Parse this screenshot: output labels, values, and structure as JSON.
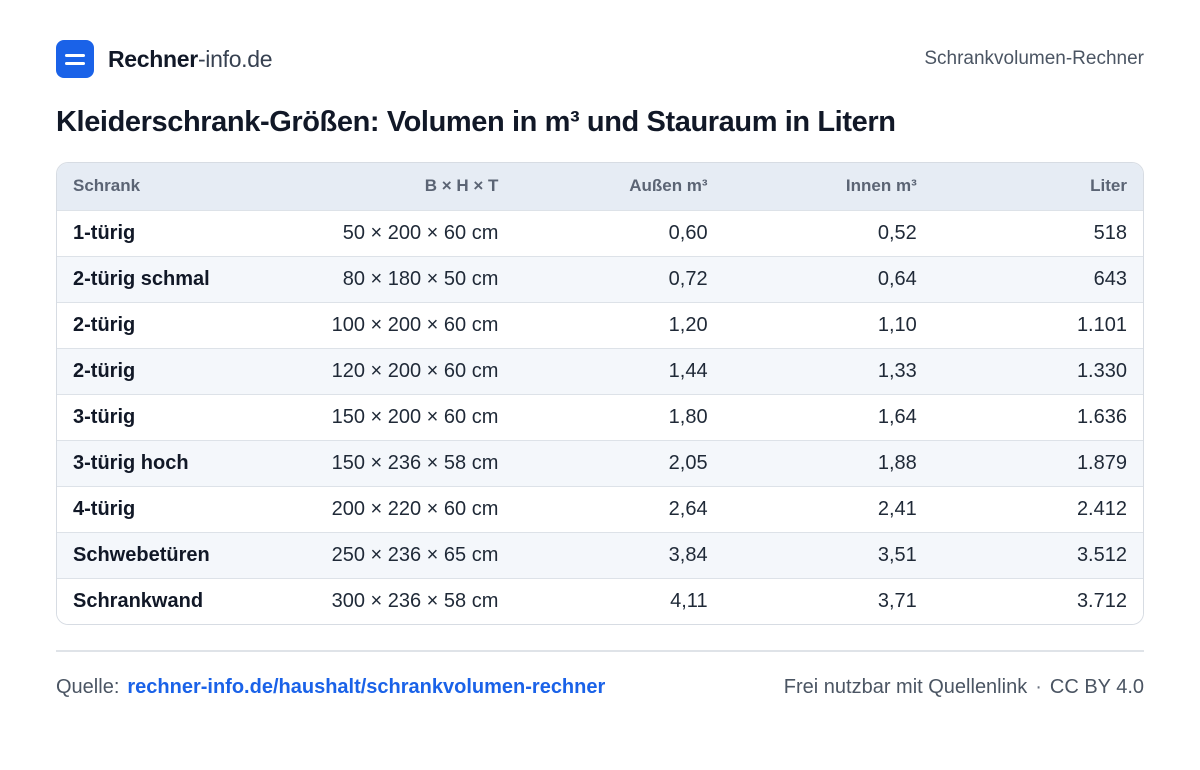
{
  "header": {
    "brand_bold": "Rechner",
    "brand_light": "-info.de",
    "page_label": "Schrankvolumen-Rechner"
  },
  "title": "Kleiderschrank-Größen: Volumen in m³ und Stauraum in Litern",
  "table": {
    "columns": [
      "Schrank",
      "B × H × T",
      "Außen m³",
      "Innen m³",
      "Liter"
    ],
    "rows": [
      [
        "1-türig",
        "50 × 200 × 60 cm",
        "0,60",
        "0,52",
        "518"
      ],
      [
        "2-türig schmal",
        "80 × 180 × 50 cm",
        "0,72",
        "0,64",
        "643"
      ],
      [
        "2-türig",
        "100 × 200 × 60 cm",
        "1,20",
        "1,10",
        "1.101"
      ],
      [
        "2-türig",
        "120 × 200 × 60 cm",
        "1,44",
        "1,33",
        "1.330"
      ],
      [
        "3-türig",
        "150 × 200 × 60 cm",
        "1,80",
        "1,64",
        "1.636"
      ],
      [
        "3-türig hoch",
        "150 × 236 × 58 cm",
        "2,05",
        "1,88",
        "1.879"
      ],
      [
        "4-türig",
        "200 × 220 × 60 cm",
        "2,64",
        "2,41",
        "2.412"
      ],
      [
        "Schwebetüren",
        "250 × 236 × 65 cm",
        "3,84",
        "3,51",
        "3.512"
      ],
      [
        "Schrankwand",
        "300 × 236 × 58 cm",
        "4,11",
        "3,71",
        "3.712"
      ]
    ]
  },
  "footer": {
    "source_label": "Quelle:",
    "source_link": "rechner-info.de/haushalt/schrankvolumen-rechner",
    "usage": "Frei nutzbar mit Quellenlink",
    "separator": "·",
    "license": "CC BY 4.0"
  },
  "colors": {
    "accent": "#1a62e8",
    "header_bg": "#e6ecf4",
    "row_alt": "#f4f7fb"
  }
}
